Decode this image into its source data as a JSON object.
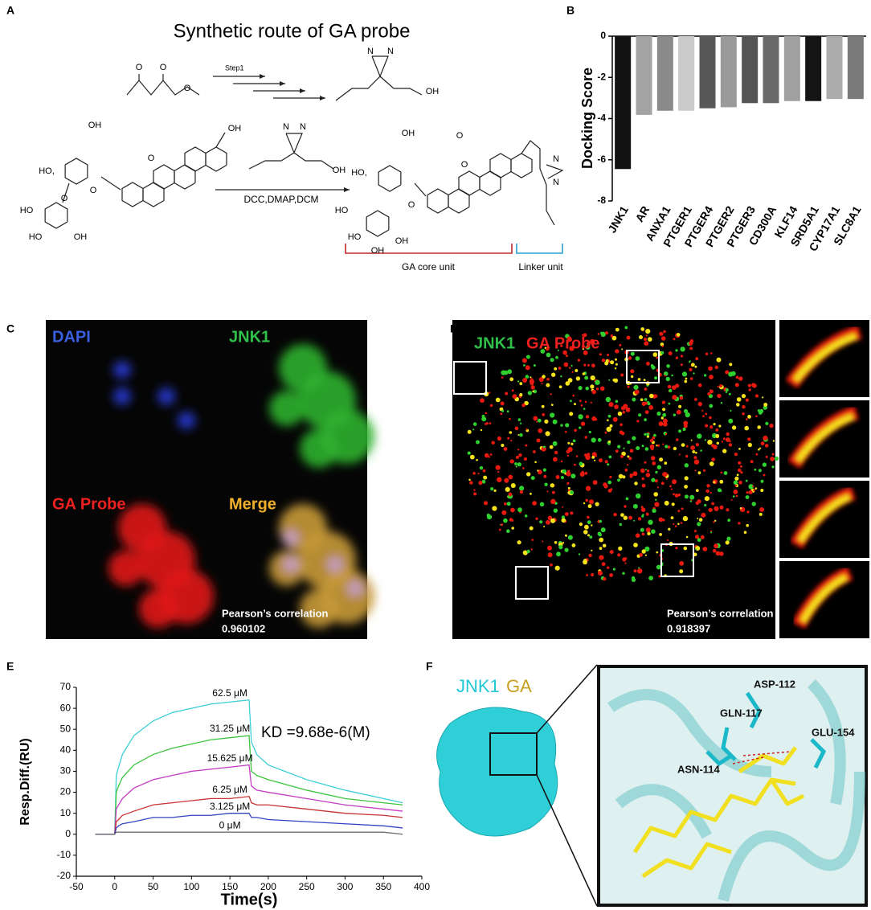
{
  "panels": {
    "a": {
      "label": "A",
      "title": "Synthetic route of GA probe",
      "step": "Step1",
      "reagents": "DCC,DMAP,DCM",
      "core_unit": "GA core unit",
      "linker_unit": "Linker unit",
      "atoms": [
        "O",
        "O",
        "O",
        "N",
        "N",
        "OH",
        "OH",
        "O",
        "OH",
        "HO,",
        "O",
        "O",
        "HO",
        "HO",
        "OH",
        "N",
        "N",
        "OH",
        "O",
        "O",
        "OH",
        "HO,",
        "HO",
        "O",
        "HO",
        "OH",
        "OH",
        "N",
        "N"
      ]
    },
    "b": {
      "label": "B"
    },
    "c": {
      "label": "C",
      "channels": [
        "DAPI",
        "JNK1",
        "GA Probe",
        "Merge"
      ],
      "stat_label": "Pearson’s correlation",
      "stat_value": "0.960102"
    },
    "d": {
      "label": "D",
      "channels": [
        "JNK1",
        "GA Probe"
      ],
      "stat_label": "Pearson’s correlation",
      "stat_value": "0.918397"
    },
    "e": {
      "label": "E"
    },
    "f": {
      "label": "F",
      "protein": "JNK1",
      "ligand": "GA",
      "residues": [
        "ASP-112",
        "GLN-117",
        "GLU-154",
        "ASN-114"
      ]
    }
  },
  "chart_data": [
    {
      "type": "bar",
      "y_label": "Docking Score",
      "categories": [
        "JNK1",
        "AR",
        "ANXA1",
        "PTGER1",
        "PTGER4",
        "PTGER2",
        "PTGER3",
        "CD300A",
        "KLF14",
        "SRD5A1",
        "CYP17A1",
        "SLC8A1"
      ],
      "values": [
        -6.45,
        -3.82,
        -3.62,
        -3.62,
        -3.5,
        -3.45,
        -3.25,
        -3.25,
        -3.15,
        -3.15,
        -3.05,
        -3.05
      ],
      "colors": [
        "#111111",
        "#a3a3a3",
        "#8a8a8a",
        "#cacaca",
        "#585858",
        "#9a9a9a",
        "#555555",
        "#6a6a6a",
        "#a0a0a0",
        "#141414",
        "#acacac",
        "#7a7a7a"
      ],
      "ylim": [
        -8,
        0
      ],
      "yticks": [
        -8,
        -6,
        -4,
        -2,
        0
      ]
    },
    {
      "type": "line",
      "x_label": "Time(s)",
      "y_label": "Resp.Diff.(RU)",
      "annotation": "KD =9.68e-6(M)",
      "x": [
        -25,
        0,
        2,
        5,
        10,
        25,
        50,
        75,
        100,
        125,
        150,
        175,
        178,
        185,
        200,
        250,
        300,
        350,
        375
      ],
      "series": [
        {
          "name": "62.5 μM",
          "color": "#3ccfd6",
          "values": [
            0,
            0,
            28,
            32,
            38,
            47,
            54,
            58,
            60,
            62,
            63,
            64,
            44,
            38,
            33,
            26,
            21,
            17,
            15
          ]
        },
        {
          "name": "31.25 μM",
          "color": "#3cc43c",
          "values": [
            0,
            0,
            20,
            23,
            27,
            33,
            38,
            41,
            43,
            45,
            46,
            47,
            30,
            28,
            26,
            21,
            17,
            15,
            14
          ]
        },
        {
          "name": "15.625 μM",
          "color": "#c43cc4",
          "values": [
            0,
            0,
            12,
            14,
            17,
            22,
            26,
            28,
            30,
            31,
            32,
            33,
            23,
            21,
            20,
            17,
            14,
            12,
            11
          ]
        },
        {
          "name": "6.25 μM",
          "color": "#c83232",
          "values": [
            0,
            0,
            6,
            7,
            9,
            11,
            14,
            15,
            16,
            17,
            17,
            18,
            15,
            14,
            14,
            12,
            10,
            9,
            8
          ]
        },
        {
          "name": "3.125 μM",
          "color": "#3243c0",
          "values": [
            0,
            0,
            3,
            4,
            5,
            6,
            8,
            8,
            9,
            9,
            10,
            10,
            8,
            8,
            7,
            6,
            5,
            4,
            3
          ]
        },
        {
          "name": "0 μM",
          "color": "#6e6e6e",
          "values": [
            0,
            0,
            1,
            1,
            1,
            1,
            1,
            1,
            1,
            1,
            1,
            1,
            1,
            1,
            1,
            1,
            1,
            1,
            0
          ]
        }
      ],
      "xlim": [
        -50,
        400
      ],
      "xticks": [
        -50,
        0,
        50,
        100,
        150,
        200,
        250,
        300,
        350,
        400
      ],
      "ylim": [
        -20,
        70
      ],
      "yticks": [
        -20,
        -10,
        0,
        10,
        20,
        30,
        40,
        50,
        60,
        70
      ]
    }
  ]
}
